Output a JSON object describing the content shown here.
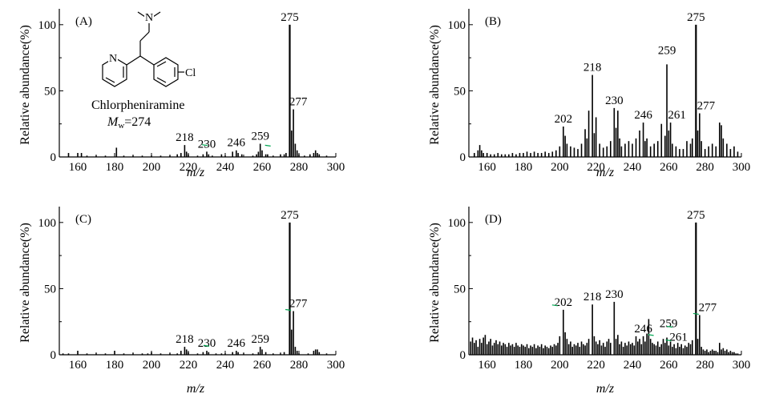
{
  "figure": {
    "colors": {
      "line": "#000000",
      "accent": "#00a651"
    },
    "molecule": {
      "name": "Chlorpheniramine",
      "mw_symbol": "M",
      "mw_sub": "w",
      "mw_rest": "=274",
      "atom_n_amine": "N",
      "atom_n_pyridine": "N",
      "atom_cl": "Cl"
    }
  },
  "chart_data": [
    {
      "type": "bar",
      "panel": "(A)",
      "xlabel": "m/z",
      "ylabel": "Relative abundance(%)",
      "xlim": [
        150,
        300
      ],
      "ylim": [
        0,
        112
      ],
      "xticks": [
        "160",
        "180",
        "200",
        "220",
        "240",
        "260",
        "280",
        "300"
      ],
      "yticks": [
        "0",
        "50",
        "100"
      ],
      "peak_labels": [
        "218",
        "230",
        "246",
        "259",
        "275",
        "277"
      ],
      "peaks": [
        [
          155,
          3
        ],
        [
          160,
          3
        ],
        [
          162,
          3
        ],
        [
          165,
          1
        ],
        [
          170,
          1
        ],
        [
          175,
          1
        ],
        [
          181,
          7
        ],
        [
          185,
          1
        ],
        [
          190,
          1
        ],
        [
          195,
          1
        ],
        [
          200,
          1
        ],
        [
          205,
          1
        ],
        [
          210,
          1
        ],
        [
          214,
          2
        ],
        [
          216,
          3
        ],
        [
          218,
          9
        ],
        [
          219,
          4
        ],
        [
          220,
          2
        ],
        [
          225,
          1
        ],
        [
          228,
          2
        ],
        [
          230,
          4
        ],
        [
          231,
          2
        ],
        [
          233,
          1
        ],
        [
          238,
          2
        ],
        [
          240,
          1
        ],
        [
          244,
          4
        ],
        [
          246,
          5
        ],
        [
          247,
          3
        ],
        [
          249,
          2
        ],
        [
          255,
          1
        ],
        [
          257,
          2
        ],
        [
          258,
          4
        ],
        [
          259,
          10
        ],
        [
          260,
          5
        ],
        [
          262,
          2
        ],
        [
          263,
          2
        ],
        [
          266,
          1
        ],
        [
          270,
          2
        ],
        [
          272,
          2
        ],
        [
          273,
          3
        ],
        [
          275,
          100
        ],
        [
          276,
          20
        ],
        [
          277,
          36
        ],
        [
          278,
          10
        ],
        [
          279,
          5
        ],
        [
          280,
          2
        ],
        [
          283,
          1
        ],
        [
          286,
          2
        ],
        [
          288,
          3
        ],
        [
          289,
          5
        ],
        [
          290,
          3
        ],
        [
          291,
          2
        ],
        [
          295,
          1
        ]
      ]
    },
    {
      "type": "bar",
      "panel": "(B)",
      "xlabel": "m/z",
      "ylabel": "Relative abundance(%)",
      "xlim": [
        150,
        300
      ],
      "ylim": [
        0,
        112
      ],
      "xticks": [
        "160",
        "180",
        "200",
        "220",
        "240",
        "260",
        "280",
        "300"
      ],
      "yticks": [
        "0",
        "50",
        "100"
      ],
      "peak_labels": [
        "202",
        "218",
        "230",
        "246",
        "259",
        "261",
        "275",
        "277"
      ],
      "peaks": [
        [
          153,
          3
        ],
        [
          155,
          5
        ],
        [
          156,
          9
        ],
        [
          157,
          5
        ],
        [
          158,
          3
        ],
        [
          160,
          3
        ],
        [
          162,
          2
        ],
        [
          164,
          2
        ],
        [
          166,
          3
        ],
        [
          168,
          2
        ],
        [
          170,
          2
        ],
        [
          172,
          2
        ],
        [
          174,
          3
        ],
        [
          176,
          2
        ],
        [
          178,
          3
        ],
        [
          180,
          3
        ],
        [
          182,
          4
        ],
        [
          184,
          3
        ],
        [
          186,
          4
        ],
        [
          188,
          3
        ],
        [
          190,
          3
        ],
        [
          192,
          4
        ],
        [
          194,
          3
        ],
        [
          196,
          4
        ],
        [
          198,
          5
        ],
        [
          200,
          8
        ],
        [
          202,
          23
        ],
        [
          203,
          16
        ],
        [
          204,
          10
        ],
        [
          206,
          8
        ],
        [
          208,
          7
        ],
        [
          210,
          6
        ],
        [
          212,
          10
        ],
        [
          214,
          21
        ],
        [
          215,
          14
        ],
        [
          216,
          35
        ],
        [
          218,
          62
        ],
        [
          219,
          18
        ],
        [
          220,
          30
        ],
        [
          222,
          10
        ],
        [
          224,
          7
        ],
        [
          226,
          8
        ],
        [
          228,
          12
        ],
        [
          230,
          37
        ],
        [
          231,
          22
        ],
        [
          232,
          35
        ],
        [
          233,
          14
        ],
        [
          234,
          8
        ],
        [
          236,
          10
        ],
        [
          238,
          12
        ],
        [
          240,
          10
        ],
        [
          242,
          14
        ],
        [
          244,
          20
        ],
        [
          246,
          26
        ],
        [
          247,
          12
        ],
        [
          248,
          14
        ],
        [
          250,
          8
        ],
        [
          252,
          10
        ],
        [
          254,
          12
        ],
        [
          256,
          25
        ],
        [
          258,
          16
        ],
        [
          259,
          70
        ],
        [
          260,
          20
        ],
        [
          261,
          26
        ],
        [
          262,
          10
        ],
        [
          264,
          8
        ],
        [
          266,
          6
        ],
        [
          268,
          6
        ],
        [
          270,
          12
        ],
        [
          272,
          10
        ],
        [
          273,
          14
        ],
        [
          275,
          100
        ],
        [
          276,
          20
        ],
        [
          277,
          33
        ],
        [
          278,
          12
        ],
        [
          280,
          6
        ],
        [
          282,
          8
        ],
        [
          284,
          10
        ],
        [
          286,
          8
        ],
        [
          288,
          26
        ],
        [
          289,
          24
        ],
        [
          290,
          14
        ],
        [
          292,
          10
        ],
        [
          294,
          6
        ],
        [
          296,
          8
        ],
        [
          298,
          4
        ]
      ]
    },
    {
      "type": "bar",
      "panel": "(C)",
      "xlabel": "m/z",
      "ylabel": "Relative abundance(%)",
      "xlim": [
        150,
        300
      ],
      "ylim": [
        0,
        112
      ],
      "xticks": [
        "160",
        "180",
        "200",
        "220",
        "240",
        "260",
        "280",
        "300"
      ],
      "yticks": [
        "0",
        "50",
        "100"
      ],
      "peak_labels": [
        "218",
        "230",
        "246",
        "259",
        "275",
        "277"
      ],
      "peaks": [
        [
          152,
          1
        ],
        [
          155,
          1
        ],
        [
          160,
          3
        ],
        [
          165,
          1
        ],
        [
          170,
          1
        ],
        [
          175,
          1
        ],
        [
          180,
          3
        ],
        [
          185,
          1
        ],
        [
          190,
          1
        ],
        [
          195,
          1
        ],
        [
          198,
          1
        ],
        [
          200,
          2
        ],
        [
          205,
          1
        ],
        [
          210,
          1
        ],
        [
          214,
          1
        ],
        [
          216,
          3
        ],
        [
          218,
          6
        ],
        [
          219,
          4
        ],
        [
          220,
          2
        ],
        [
          225,
          1
        ],
        [
          228,
          2
        ],
        [
          230,
          3
        ],
        [
          231,
          2
        ],
        [
          235,
          1
        ],
        [
          238,
          1
        ],
        [
          240,
          1
        ],
        [
          244,
          2
        ],
        [
          246,
          3
        ],
        [
          247,
          2
        ],
        [
          250,
          1
        ],
        [
          255,
          1
        ],
        [
          258,
          2
        ],
        [
          259,
          6
        ],
        [
          260,
          4
        ],
        [
          262,
          2
        ],
        [
          266,
          1
        ],
        [
          270,
          1
        ],
        [
          272,
          2
        ],
        [
          275,
          100
        ],
        [
          276,
          19
        ],
        [
          277,
          33
        ],
        [
          278,
          6
        ],
        [
          279,
          3
        ],
        [
          280,
          1
        ],
        [
          285,
          1
        ],
        [
          288,
          3
        ],
        [
          289,
          4
        ],
        [
          290,
          4
        ],
        [
          291,
          2
        ],
        [
          295,
          1
        ]
      ]
    },
    {
      "type": "bar",
      "panel": "(D)",
      "xlabel": "m/z",
      "ylabel": "Relative abundance(%)",
      "xlim": [
        150,
        300
      ],
      "ylim": [
        0,
        112
      ],
      "xticks": [
        "160",
        "180",
        "200",
        "220",
        "240",
        "260",
        "280",
        "300"
      ],
      "yticks": [
        "0",
        "50",
        "100"
      ],
      "peak_labels": [
        "202",
        "218",
        "230",
        "246",
        "259",
        "261",
        "275",
        "277"
      ],
      "peaks": [
        [
          151,
          10
        ],
        [
          152,
          13
        ],
        [
          153,
          9
        ],
        [
          154,
          11
        ],
        [
          155,
          6
        ],
        [
          156,
          12
        ],
        [
          157,
          9
        ],
        [
          158,
          13
        ],
        [
          159,
          15
        ],
        [
          160,
          8
        ],
        [
          161,
          10
        ],
        [
          162,
          12
        ],
        [
          163,
          7
        ],
        [
          164,
          9
        ],
        [
          165,
          11
        ],
        [
          166,
          8
        ],
        [
          167,
          10
        ],
        [
          168,
          7
        ],
        [
          169,
          9
        ],
        [
          170,
          8
        ],
        [
          171,
          6
        ],
        [
          172,
          9
        ],
        [
          173,
          7
        ],
        [
          174,
          8
        ],
        [
          175,
          6
        ],
        [
          176,
          9
        ],
        [
          177,
          7
        ],
        [
          178,
          6
        ],
        [
          179,
          8
        ],
        [
          180,
          7
        ],
        [
          181,
          6
        ],
        [
          182,
          8
        ],
        [
          183,
          5
        ],
        [
          184,
          7
        ],
        [
          185,
          6
        ],
        [
          186,
          8
        ],
        [
          187,
          5
        ],
        [
          188,
          7
        ],
        [
          189,
          6
        ],
        [
          190,
          8
        ],
        [
          191,
          5
        ],
        [
          192,
          7
        ],
        [
          193,
          6
        ],
        [
          194,
          5
        ],
        [
          195,
          7
        ],
        [
          196,
          6
        ],
        [
          197,
          8
        ],
        [
          198,
          7
        ],
        [
          199,
          9
        ],
        [
          200,
          14
        ],
        [
          202,
          34
        ],
        [
          203,
          17
        ],
        [
          204,
          12
        ],
        [
          205,
          8
        ],
        [
          206,
          10
        ],
        [
          207,
          6
        ],
        [
          208,
          8
        ],
        [
          209,
          7
        ],
        [
          210,
          9
        ],
        [
          211,
          6
        ],
        [
          212,
          10
        ],
        [
          213,
          8
        ],
        [
          214,
          7
        ],
        [
          215,
          9
        ],
        [
          216,
          12
        ],
        [
          218,
          38
        ],
        [
          219,
          14
        ],
        [
          220,
          10
        ],
        [
          221,
          8
        ],
        [
          222,
          11
        ],
        [
          223,
          7
        ],
        [
          224,
          9
        ],
        [
          225,
          6
        ],
        [
          226,
          10
        ],
        [
          227,
          12
        ],
        [
          228,
          9
        ],
        [
          230,
          40
        ],
        [
          231,
          12
        ],
        [
          232,
          15
        ],
        [
          233,
          8
        ],
        [
          234,
          10
        ],
        [
          235,
          6
        ],
        [
          236,
          9
        ],
        [
          237,
          7
        ],
        [
          238,
          10
        ],
        [
          239,
          8
        ],
        [
          240,
          9
        ],
        [
          241,
          7
        ],
        [
          242,
          14
        ],
        [
          243,
          10
        ],
        [
          244,
          12
        ],
        [
          245,
          8
        ],
        [
          246,
          14
        ],
        [
          247,
          10
        ],
        [
          248,
          16
        ],
        [
          249,
          27
        ],
        [
          250,
          12
        ],
        [
          251,
          9
        ],
        [
          252,
          8
        ],
        [
          253,
          7
        ],
        [
          254,
          10
        ],
        [
          255,
          6
        ],
        [
          256,
          8
        ],
        [
          257,
          12
        ],
        [
          258,
          9
        ],
        [
          259,
          13
        ],
        [
          260,
          7
        ],
        [
          261,
          10
        ],
        [
          262,
          6
        ],
        [
          263,
          8
        ],
        [
          264,
          5
        ],
        [
          265,
          9
        ],
        [
          266,
          6
        ],
        [
          267,
          8
        ],
        [
          268,
          5
        ],
        [
          269,
          7
        ],
        [
          270,
          6
        ],
        [
          271,
          9
        ],
        [
          272,
          8
        ],
        [
          273,
          11
        ],
        [
          275,
          100
        ],
        [
          276,
          12
        ],
        [
          277,
          30
        ],
        [
          278,
          6
        ],
        [
          279,
          4
        ],
        [
          280,
          3
        ],
        [
          281,
          4
        ],
        [
          282,
          2
        ],
        [
          283,
          3
        ],
        [
          284,
          4
        ],
        [
          285,
          3
        ],
        [
          286,
          3
        ],
        [
          287,
          2
        ],
        [
          288,
          9
        ],
        [
          289,
          4
        ],
        [
          290,
          5
        ],
        [
          291,
          3
        ],
        [
          292,
          4
        ],
        [
          293,
          2
        ],
        [
          294,
          3
        ],
        [
          295,
          2
        ],
        [
          296,
          2
        ],
        [
          297,
          1
        ],
        [
          298,
          1
        ]
      ]
    }
  ]
}
